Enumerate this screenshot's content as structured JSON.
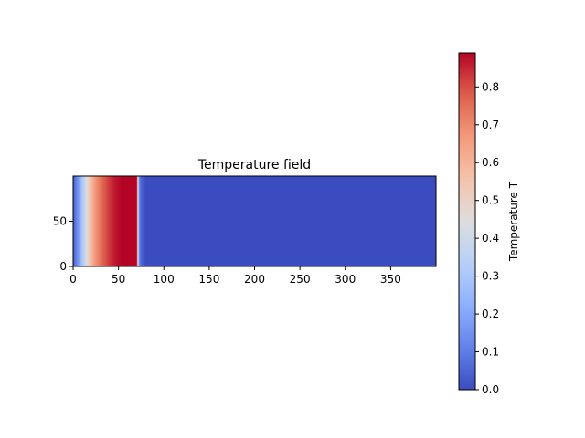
{
  "chart_data": {
    "type": "heatmap",
    "title": "Temperature field",
    "xlabel": "",
    "ylabel": "",
    "xlim": [
      0,
      400
    ],
    "ylim": [
      0,
      100
    ],
    "x_ticks": [
      "0",
      "50",
      "100",
      "150",
      "200",
      "250",
      "300",
      "350"
    ],
    "y_ticks": [
      "0",
      "50"
    ],
    "colormap": "coolwarm",
    "colorbar": {
      "label": "Temperature T",
      "range": [
        0.0,
        0.89
      ],
      "ticks": [
        "0.0",
        "0.1",
        "0.2",
        "0.3",
        "0.4",
        "0.5",
        "0.6",
        "0.7",
        "0.8"
      ]
    },
    "profile": {
      "description_units": "T as a function of x (uniform in y)",
      "x": [
        0,
        5,
        10,
        15,
        20,
        25,
        30,
        35,
        40,
        45,
        50,
        55,
        60,
        65,
        70,
        71,
        72,
        73,
        75,
        80,
        400
      ],
      "T": [
        0.03,
        0.15,
        0.3,
        0.45,
        0.58,
        0.68,
        0.74,
        0.79,
        0.83,
        0.86,
        0.88,
        0.89,
        0.89,
        0.89,
        0.89,
        0.55,
        0.32,
        0.12,
        0.05,
        0.0,
        0.0
      ]
    }
  }
}
